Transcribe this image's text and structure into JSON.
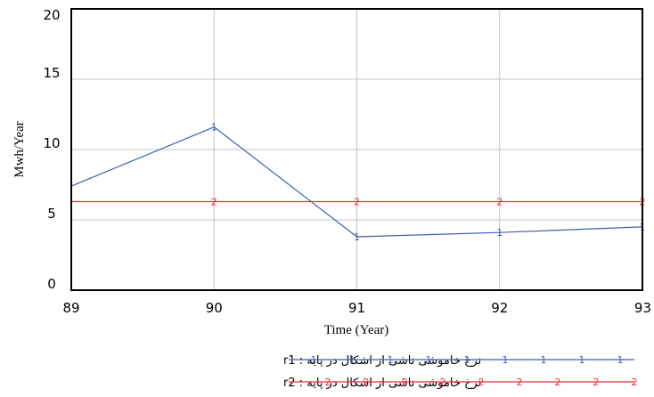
{
  "chart_data": {
    "type": "line",
    "xlabel": "Time (Year)",
    "ylabel": "Mwh/Year",
    "xlim": [
      89,
      93
    ],
    "ylim": [
      0,
      20
    ],
    "x_ticks": [
      "89",
      "90",
      "91",
      "92",
      "93"
    ],
    "y_ticks": [
      "0",
      "5",
      "10",
      "15",
      "20"
    ],
    "grid": true,
    "legend_position": "bottom",
    "series": [
      {
        "name": "نرخ خاموشی ناشی از اشکال در پایه : r1",
        "marker": "1",
        "color": "#3a5fb0",
        "x": [
          89,
          90,
          91,
          92,
          93
        ],
        "y": [
          7.4,
          11.6,
          3.8,
          4.1,
          4.5
        ]
      },
      {
        "name": "نرخ خاموشی ناشی از اشکال در پایه : r2",
        "marker": "2",
        "color": "#e83030",
        "x": [
          89,
          90,
          91,
          92,
          93
        ],
        "y": [
          6.3,
          6.3,
          6.3,
          6.3,
          6.3
        ]
      }
    ]
  }
}
